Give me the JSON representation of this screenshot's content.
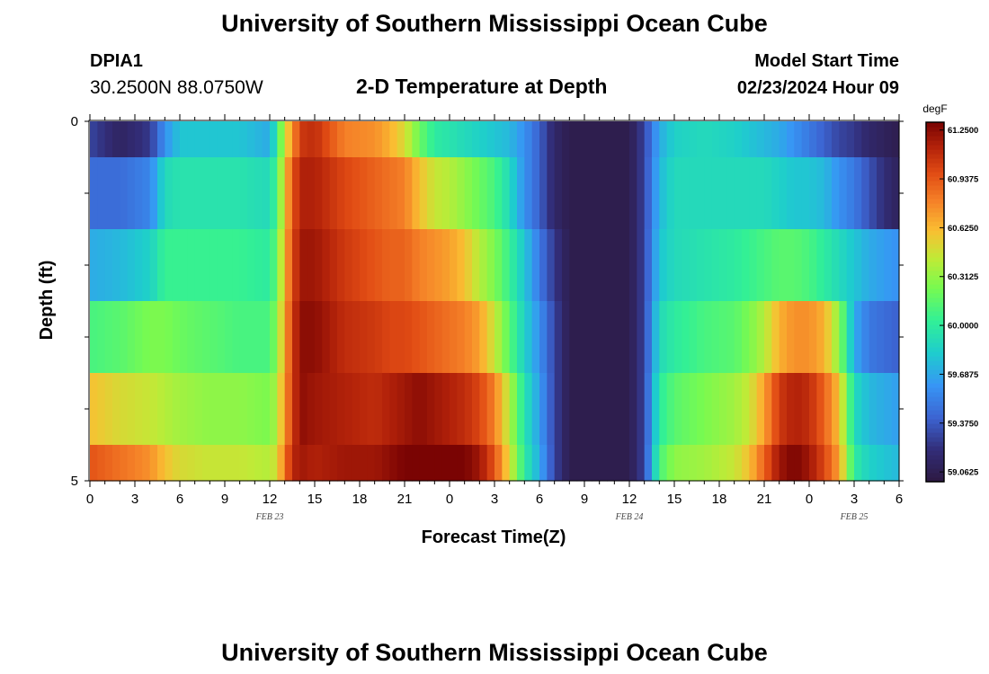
{
  "header": {
    "title": "University of Southern Mississippi Ocean Cube",
    "station_id": "DPIA1",
    "coordinates": "30.2500N  88.0750W",
    "chart_title": "2-D Temperature at Depth",
    "model_start_label": "Model Start Time",
    "model_start_value": "02/23/2024 Hour 09"
  },
  "footer": {
    "title": "University of Southern Mississippi Ocean Cube"
  },
  "chart_data": {
    "type": "heatmap",
    "title": "2-D Temperature at Depth",
    "xlabel": "Forecast Time(Z)",
    "ylabel": "Depth (ft)",
    "x_tick_labels": [
      "0",
      "3",
      "6",
      "9",
      "12",
      "15",
      "18",
      "21",
      "0",
      "3",
      "6",
      "9",
      "12",
      "15",
      "18",
      "21",
      "0",
      "3",
      "6"
    ],
    "x_date_labels": [
      {
        "label": "FEB 23",
        "at_hour": 12
      },
      {
        "label": "FEB 24",
        "at_hour": 36
      },
      {
        "label": "FEB 25",
        "at_hour": 51
      }
    ],
    "x_range_hours": [
      0,
      54
    ],
    "y_tick_labels": [
      "0",
      "5"
    ],
    "ylim": [
      0,
      5
    ],
    "depth_levels_ft": [
      0,
      1,
      2,
      3,
      4,
      5
    ],
    "colorbar": {
      "unit": "degF",
      "min": 59.0,
      "max": 61.3,
      "tick_labels": [
        "61.2500",
        "60.9375",
        "60.6250",
        "60.3125",
        "60.0000",
        "59.6875",
        "59.3750",
        "59.0625"
      ]
    },
    "keyframe_hours": [
      0,
      2,
      4,
      5,
      6,
      8,
      10,
      12,
      12.5,
      13,
      13.5,
      14,
      15,
      17,
      19,
      20,
      21,
      22,
      23,
      24,
      25,
      26,
      27,
      28,
      29,
      30,
      31,
      32,
      33,
      34,
      35,
      36,
      37,
      38,
      39,
      41,
      43,
      44,
      45,
      46,
      47,
      48,
      49,
      50,
      51,
      52,
      53,
      54
    ],
    "series": [
      {
        "name": "0",
        "values": [
          59.3,
          59.12,
          59.25,
          59.6,
          59.8,
          59.8,
          59.8,
          59.7,
          60.0,
          60.5,
          60.7,
          61.05,
          61.1,
          60.8,
          60.75,
          60.65,
          60.5,
          60.2,
          60.0,
          59.95,
          59.9,
          59.85,
          59.8,
          59.75,
          59.6,
          59.4,
          59.15,
          59.05,
          59.05,
          59.05,
          59.05,
          59.05,
          59.3,
          59.7,
          59.85,
          59.9,
          59.85,
          59.8,
          59.75,
          59.7,
          59.6,
          59.5,
          59.4,
          59.3,
          59.25,
          59.15,
          59.1,
          59.05
        ]
      },
      {
        "name": "1",
        "values": [
          59.45,
          59.45,
          59.55,
          59.9,
          59.95,
          59.95,
          59.95,
          59.9,
          60.1,
          60.6,
          60.9,
          61.15,
          61.15,
          61.0,
          60.9,
          60.85,
          60.8,
          60.6,
          60.45,
          60.4,
          60.3,
          60.2,
          60.1,
          59.9,
          59.6,
          59.4,
          59.15,
          59.05,
          59.05,
          59.05,
          59.05,
          59.05,
          59.3,
          59.75,
          59.9,
          59.9,
          59.9,
          59.9,
          59.9,
          59.85,
          59.8,
          59.8,
          59.75,
          59.6,
          59.5,
          59.35,
          59.2,
          59.1
        ]
      },
      {
        "name": "2",
        "values": [
          59.7,
          59.75,
          59.85,
          60.05,
          60.05,
          60.05,
          60.05,
          60.0,
          60.2,
          60.65,
          60.95,
          61.2,
          61.2,
          61.05,
          60.95,
          60.9,
          60.9,
          60.8,
          60.75,
          60.7,
          60.6,
          60.4,
          60.25,
          60.05,
          59.8,
          59.5,
          59.25,
          59.05,
          59.05,
          59.05,
          59.05,
          59.05,
          59.3,
          59.8,
          59.9,
          59.95,
          60.0,
          60.05,
          60.1,
          60.15,
          60.15,
          60.1,
          60.0,
          59.9,
          59.8,
          59.7,
          59.65,
          59.6
        ]
      },
      {
        "name": "3",
        "values": [
          60.1,
          60.15,
          60.25,
          60.25,
          60.2,
          60.15,
          60.1,
          60.1,
          60.3,
          60.7,
          61.0,
          61.25,
          61.25,
          61.1,
          61.05,
          61.0,
          61.0,
          60.95,
          60.9,
          60.85,
          60.8,
          60.7,
          60.45,
          60.15,
          59.85,
          59.6,
          59.3,
          59.05,
          59.05,
          59.05,
          59.05,
          59.05,
          59.3,
          59.9,
          60.0,
          60.1,
          60.15,
          60.25,
          60.4,
          60.65,
          60.75,
          60.75,
          60.65,
          60.3,
          59.7,
          59.5,
          59.45,
          59.4
        ]
      },
      {
        "name": "4",
        "values": [
          60.6,
          60.5,
          60.45,
          60.4,
          60.35,
          60.3,
          60.3,
          60.25,
          60.4,
          60.75,
          61.0,
          61.25,
          61.2,
          61.15,
          61.1,
          61.15,
          61.2,
          61.25,
          61.2,
          61.15,
          61.1,
          61.0,
          60.8,
          60.4,
          59.95,
          59.65,
          59.3,
          59.05,
          59.05,
          59.05,
          59.05,
          59.05,
          59.3,
          60.0,
          60.15,
          60.25,
          60.35,
          60.45,
          60.7,
          61.05,
          61.15,
          61.1,
          60.9,
          60.6,
          59.9,
          59.75,
          59.7,
          59.65
        ]
      },
      {
        "name": "5",
        "values": [
          60.95,
          60.85,
          60.75,
          60.6,
          60.5,
          60.45,
          60.45,
          60.4,
          60.5,
          60.85,
          61.1,
          61.2,
          61.15,
          61.2,
          61.2,
          61.25,
          61.3,
          61.3,
          61.3,
          61.35,
          61.3,
          61.2,
          60.95,
          60.5,
          60.0,
          59.7,
          59.3,
          59.05,
          59.05,
          59.05,
          59.05,
          59.05,
          59.3,
          60.1,
          60.3,
          60.35,
          60.45,
          60.6,
          60.9,
          61.2,
          61.3,
          61.2,
          61.0,
          60.7,
          60.0,
          59.85,
          59.8,
          59.75
        ]
      }
    ]
  }
}
